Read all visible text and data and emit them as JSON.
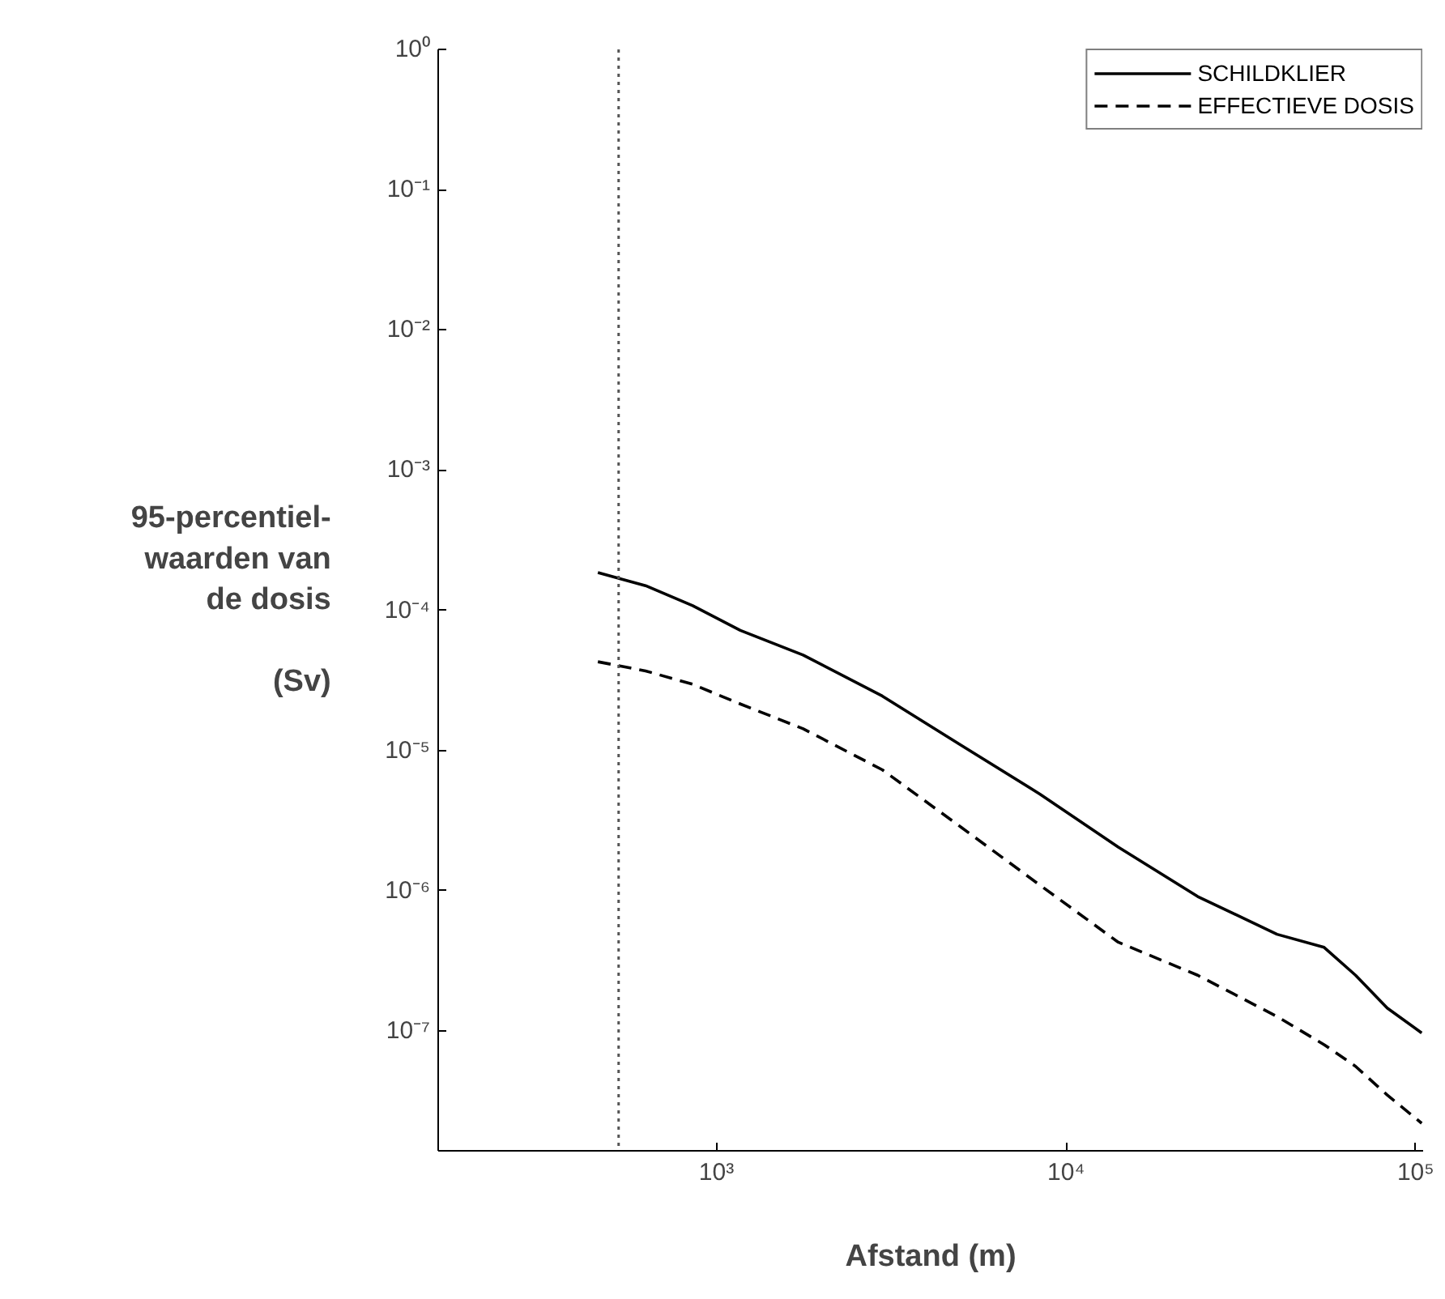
{
  "chart_data": {
    "type": "line",
    "ylabel": "95-percentiel-\nwaarden van\nde dosis\n\n(Sv)",
    "xlabel": "Afstand (m)",
    "log": "xy",
    "grid": false,
    "legend": "top right",
    "xlim": [
      160,
      105000
    ],
    "ylim": [
      1.4e-08,
      1
    ],
    "xticks": [
      {
        "value": 1000,
        "label": "10³"
      },
      {
        "value": 10000,
        "label": "10⁴"
      },
      {
        "value": 100000,
        "label": "10⁵"
      }
    ],
    "yticks": [
      {
        "value": 1e-07,
        "label": "10⁻⁷"
      },
      {
        "value": 1e-06,
        "label": "10⁻⁶"
      },
      {
        "value": 1e-05,
        "label": "10⁻⁵"
      },
      {
        "value": 0.0001,
        "label": "10⁻⁴"
      },
      {
        "value": 0.001,
        "label": "10⁻³"
      },
      {
        "value": 0.01,
        "label": "10⁻²"
      },
      {
        "value": 0.1,
        "label": "10⁻¹"
      },
      {
        "value": 1,
        "label": "10⁰"
      }
    ],
    "x": [
      458,
      627,
      855,
      1170,
      1770,
      2980,
      5010,
      8410,
      14100,
      23800,
      40100,
      54700,
      67300,
      82900,
      104000
    ],
    "series": [
      {
        "name": "SCHILDKLIER",
        "color": "#000000",
        "line_style": "solid",
        "values": [
          0.000186,
          0.00015,
          0.000108,
          7.2e-05,
          4.8e-05,
          2.45e-05,
          1.09e-05,
          4.9e-06,
          2.05e-06,
          9.1e-07,
          4.9e-07,
          3.95e-07,
          2.5e-07,
          1.46e-07,
          9.7e-08
        ]
      },
      {
        "name": "EFFECTIEVE DOSIS",
        "color": "#000000",
        "line_style": "dashed",
        "values": [
          4.3e-05,
          3.7e-05,
          2.97e-05,
          2.15e-05,
          1.43e-05,
          7.3e-06,
          2.84e-06,
          1.1e-06,
          4.3e-07,
          2.5e-07,
          1.27e-07,
          8e-08,
          5.6e-08,
          3.5e-08,
          2.2e-08
        ]
      }
    ],
    "ref_lines": [
      {
        "axis": "x",
        "value": 525,
        "label": null,
        "line_style": "dotted",
        "color": "#555555"
      }
    ]
  }
}
